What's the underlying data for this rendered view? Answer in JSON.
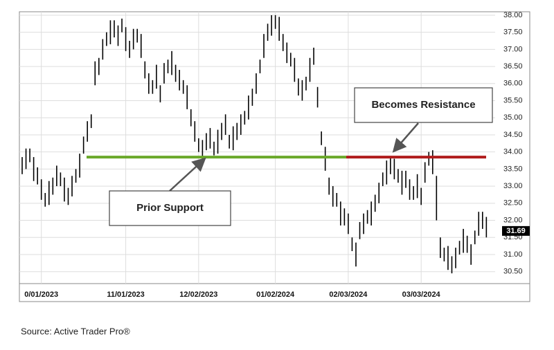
{
  "chart_data": {
    "type": "range",
    "color": "#000000",
    "categories": [
      null,
      null,
      null,
      null,
      null,
      "0/01/2023",
      null,
      null,
      null,
      null,
      null,
      null,
      null,
      null,
      null,
      null,
      null,
      null,
      null,
      null,
      null,
      null,
      null,
      null,
      null,
      null,
      null,
      "11/01/2023",
      null,
      null,
      null,
      null,
      null,
      null,
      null,
      null,
      null,
      null,
      null,
      null,
      null,
      null,
      null,
      null,
      null,
      null,
      "12/02/2023",
      null,
      null,
      null,
      null,
      null,
      null,
      null,
      null,
      null,
      null,
      null,
      null,
      null,
      null,
      null,
      null,
      null,
      null,
      null,
      "01/02/2024",
      null,
      null,
      null,
      null,
      null,
      null,
      null,
      null,
      null,
      null,
      null,
      null,
      null,
      null,
      null,
      null,
      null,
      null,
      "02/03/2024",
      null,
      null,
      null,
      null,
      null,
      null,
      null,
      null,
      null,
      null,
      null,
      null,
      null,
      null,
      null,
      null,
      null,
      null,
      "03/03/2024",
      null,
      null,
      null,
      null,
      null,
      null,
      null,
      null,
      null,
      null,
      null,
      null,
      null,
      null,
      null,
      null,
      null
    ],
    "highs": [
      33.85,
      34.1,
      34.1,
      33.85,
      33.55,
      33.2,
      32.8,
      33.15,
      33.25,
      33.6,
      33.4,
      33.25,
      32.95,
      33.3,
      33.5,
      33.95,
      34.45,
      34.9,
      35.1,
      36.65,
      36.75,
      37.3,
      37.5,
      37.85,
      37.85,
      37.7,
      37.9,
      37.65,
      37.25,
      37.6,
      37.6,
      37.45,
      36.65,
      36.3,
      36.1,
      36.55,
      35.95,
      36.6,
      36.7,
      36.95,
      36.55,
      36.4,
      36.1,
      35.95,
      35.25,
      34.9,
      34.4,
      34.35,
      34.55,
      34.7,
      34.3,
      34.65,
      34.85,
      35.1,
      34.5,
      34.75,
      34.85,
      35.1,
      35.2,
      35.65,
      35.85,
      36.3,
      36.7,
      37.45,
      37.75,
      38.0,
      38.0,
      37.95,
      37.45,
      37.2,
      36.9,
      36.75,
      36.15,
      36.1,
      36.2,
      36.75,
      37.05,
      35.9,
      34.6,
      34.15,
      33.25,
      33.0,
      32.8,
      32.55,
      32.35,
      32.2,
      31.5,
      31.35,
      31.95,
      32.2,
      32.3,
      32.55,
      32.75,
      33.1,
      33.4,
      33.75,
      33.85,
      33.8,
      33.5,
      33.45,
      33.45,
      33.2,
      33.0,
      33.35,
      32.95,
      33.7,
      34.0,
      34.05,
      33.3,
      31.5,
      31.2,
      31.25,
      30.95,
      31.2,
      31.4,
      31.75,
      31.55,
      31.3,
      31.7,
      32.25,
      32.25,
      32.1
    ],
    "lows": [
      33.35,
      33.5,
      33.7,
      33.15,
      33.05,
      32.6,
      32.4,
      32.45,
      32.75,
      33.0,
      33.0,
      32.55,
      32.45,
      32.7,
      33.1,
      33.25,
      33.95,
      34.3,
      34.7,
      35.95,
      36.25,
      36.7,
      37.1,
      37.15,
      37.35,
      37.1,
      37.5,
      36.95,
      36.75,
      37.0,
      37.2,
      36.75,
      36.15,
      35.7,
      35.7,
      35.85,
      35.45,
      36.0,
      36.3,
      36.25,
      36.05,
      35.8,
      35.7,
      35.25,
      34.75,
      34.3,
      34.0,
      33.65,
      34.05,
      34.1,
      33.9,
      33.95,
      34.35,
      34.5,
      34.1,
      34.05,
      34.35,
      34.5,
      34.8,
      34.95,
      35.35,
      35.7,
      36.3,
      36.75,
      37.25,
      37.4,
      37.6,
      37.25,
      36.95,
      36.6,
      36.5,
      36.05,
      35.65,
      35.5,
      35.8,
      36.05,
      36.55,
      35.3,
      34.2,
      33.45,
      32.75,
      32.4,
      32.4,
      31.85,
      31.85,
      31.6,
      31.1,
      30.65,
      31.45,
      31.6,
      31.9,
      31.85,
      32.25,
      32.5,
      33.0,
      33.05,
      33.35,
      33.2,
      33.1,
      32.75,
      32.95,
      32.6,
      32.6,
      32.65,
      32.45,
      33.1,
      33.6,
      33.35,
      32.0,
      30.9,
      30.8,
      30.55,
      30.45,
      30.6,
      31.0,
      31.05,
      31.05,
      30.7,
      31.3,
      31.55,
      31.75,
      31.5
    ],
    "ylim": [
      30.15,
      38.1
    ],
    "yticks": [
      {
        "value": 30.5,
        "label": "30.50"
      },
      {
        "value": 31,
        "label": "31.00"
      },
      {
        "value": 31.5,
        "label": "31.50"
      },
      {
        "value": 32,
        "label": "32.00"
      },
      {
        "value": 32.5,
        "label": "32.50"
      },
      {
        "value": 33,
        "label": "33.00"
      },
      {
        "value": 33.5,
        "label": "33.50"
      },
      {
        "value": 34,
        "label": "34.00"
      },
      {
        "value": 34.5,
        "label": "34.50"
      },
      {
        "value": 35,
        "label": "35.00"
      },
      {
        "value": 35.5,
        "label": "35.50"
      },
      {
        "value": 36,
        "label": "36.00"
      },
      {
        "value": 36.5,
        "label": "36.50"
      },
      {
        "value": 37,
        "label": "37.00"
      },
      {
        "value": 37.5,
        "label": "37.50"
      },
      {
        "value": 38,
        "label": "38.00"
      }
    ],
    "grid": true,
    "last_price": 31.69,
    "levels": [
      {
        "value": 33.85,
        "color": "#6aa829"
      },
      {
        "value": 33.85,
        "color": "#b01c1c"
      }
    ],
    "annotations": [
      "Prior Support",
      "Becomes Resistance"
    ],
    "source": "Source: Active Trader Pro®"
  }
}
